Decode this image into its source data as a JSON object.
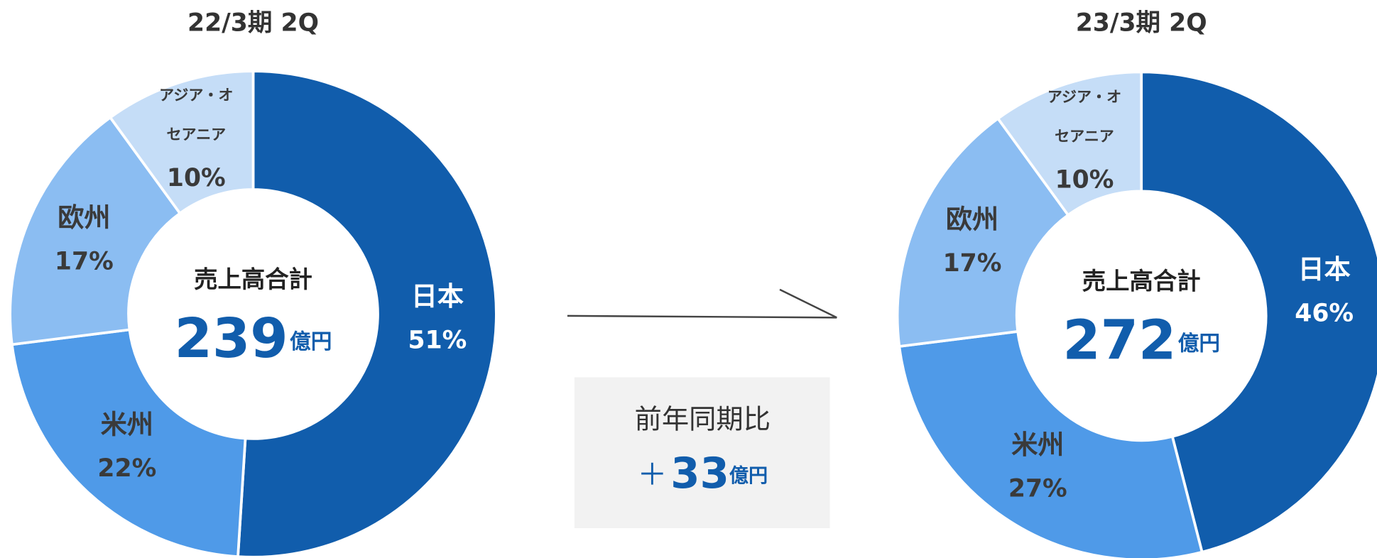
{
  "chart_data": [
    {
      "type": "pie",
      "title": "22/3期 2Q",
      "categories": [
        "日本",
        "米州",
        "欧州",
        "アジア・オセアニア"
      ],
      "values": [
        51,
        22,
        17,
        10
      ],
      "value_labels": [
        "51%",
        "22%",
        "17%",
        "10%"
      ],
      "colors": [
        "#115dac",
        "#4f9ae8",
        "#8bbdf2",
        "#c5ddf7"
      ],
      "center_label": "売上高合計",
      "total": 239,
      "total_unit": "億円"
    },
    {
      "type": "pie",
      "title": "23/3期 2Q",
      "categories": [
        "日本",
        "米州",
        "欧州",
        "アジア・オセアニア"
      ],
      "values": [
        46,
        27,
        17,
        10
      ],
      "value_labels": [
        "46%",
        "27%",
        "17%",
        "10%"
      ],
      "colors": [
        "#115dac",
        "#4f9ae8",
        "#8bbdf2",
        "#c5ddf7"
      ],
      "center_label": "売上高合計",
      "total": 272,
      "total_unit": "億円"
    }
  ],
  "comparison": {
    "label": "前年同期比",
    "sign": "＋",
    "value": 33,
    "unit": "億円"
  }
}
